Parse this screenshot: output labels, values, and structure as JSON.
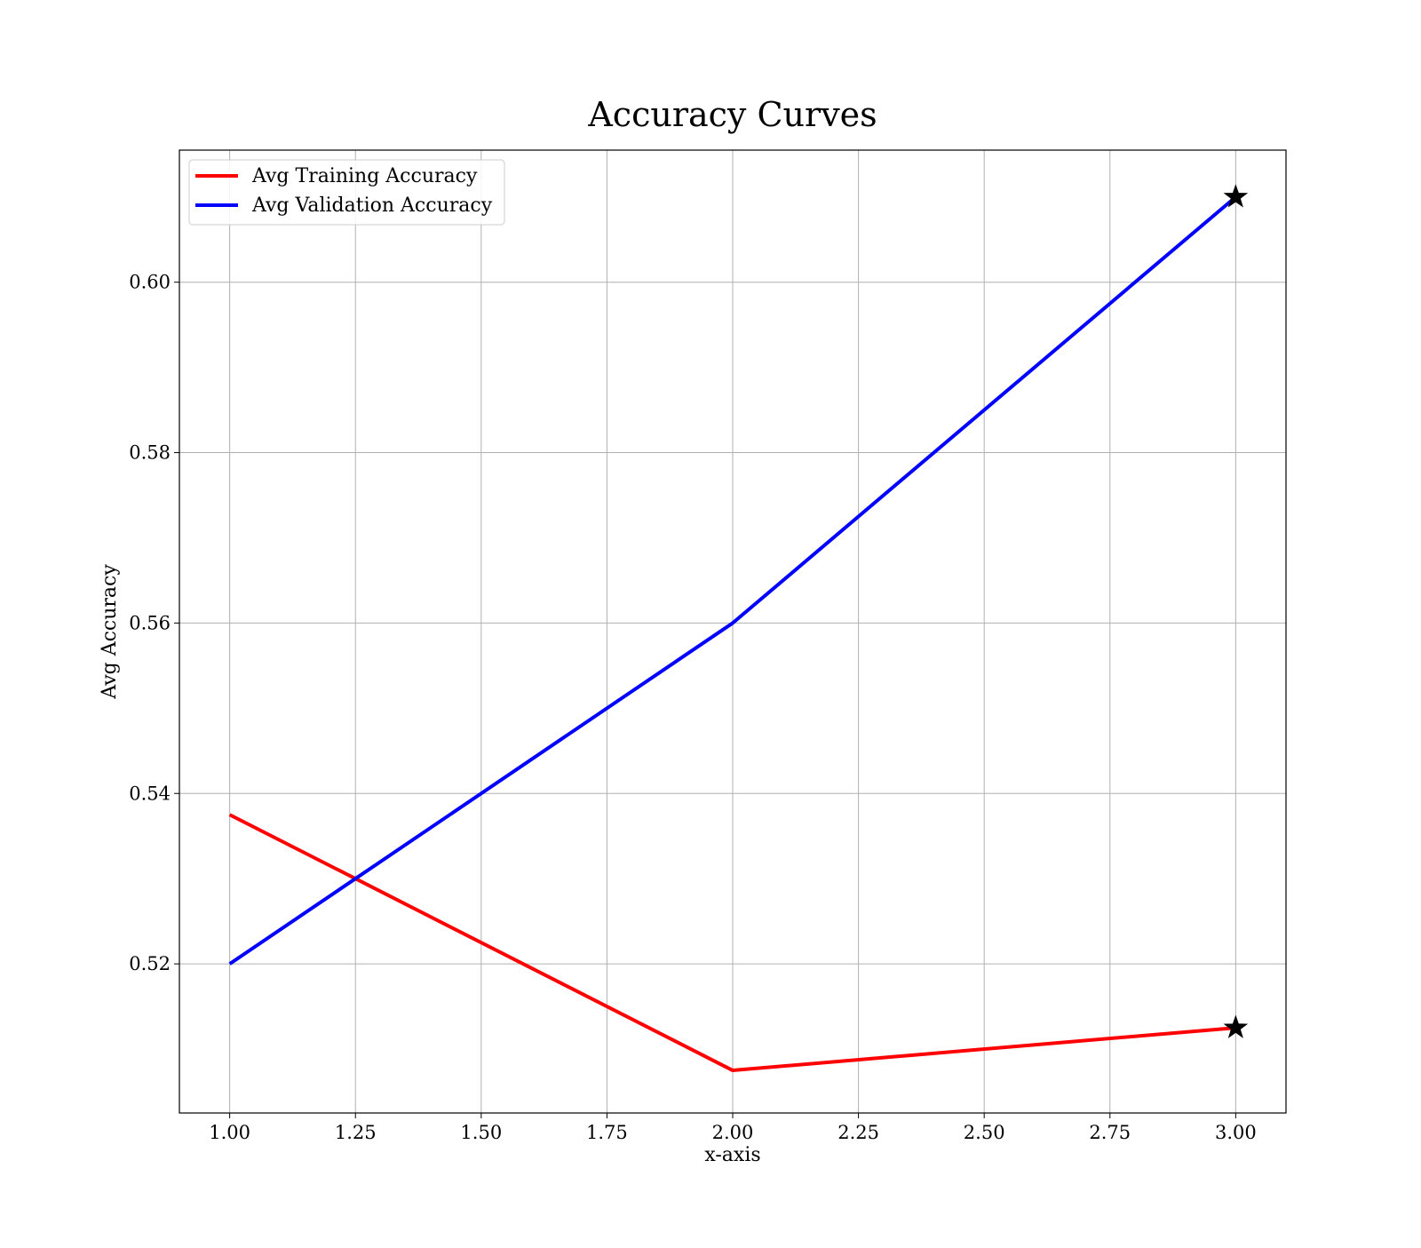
{
  "chart_data": {
    "type": "line",
    "title": "Accuracy Curves",
    "xlabel": "x-axis",
    "ylabel": "Avg Accuracy",
    "x": [
      1.0,
      2.0,
      3.0
    ],
    "xlim": [
      0.9,
      3.1
    ],
    "ylim": [
      0.5025,
      0.6155
    ],
    "xticks": [
      1.0,
      1.25,
      1.5,
      1.75,
      2.0,
      2.25,
      2.5,
      2.75,
      3.0
    ],
    "xtick_labels": [
      "1.00",
      "1.25",
      "1.50",
      "1.75",
      "2.00",
      "2.25",
      "2.50",
      "2.75",
      "3.00"
    ],
    "yticks": [
      0.52,
      0.54,
      0.56,
      0.58,
      0.6
    ],
    "ytick_labels": [
      "0.52",
      "0.54",
      "0.56",
      "0.58",
      "0.60"
    ],
    "grid": true,
    "legend_position": "top-left",
    "series": [
      {
        "name": "Avg Training Accuracy",
        "color": "#ff0000",
        "values": [
          0.5375,
          0.5075,
          0.5125
        ]
      },
      {
        "name": "Avg Validation Accuracy",
        "color": "#0000ff",
        "values": [
          0.52,
          0.56,
          0.61
        ]
      }
    ],
    "markers": [
      {
        "x": 3.0,
        "y": 0.5125,
        "shape": "star",
        "color": "#000000"
      },
      {
        "x": 3.0,
        "y": 0.61,
        "shape": "star",
        "color": "#000000"
      }
    ]
  }
}
